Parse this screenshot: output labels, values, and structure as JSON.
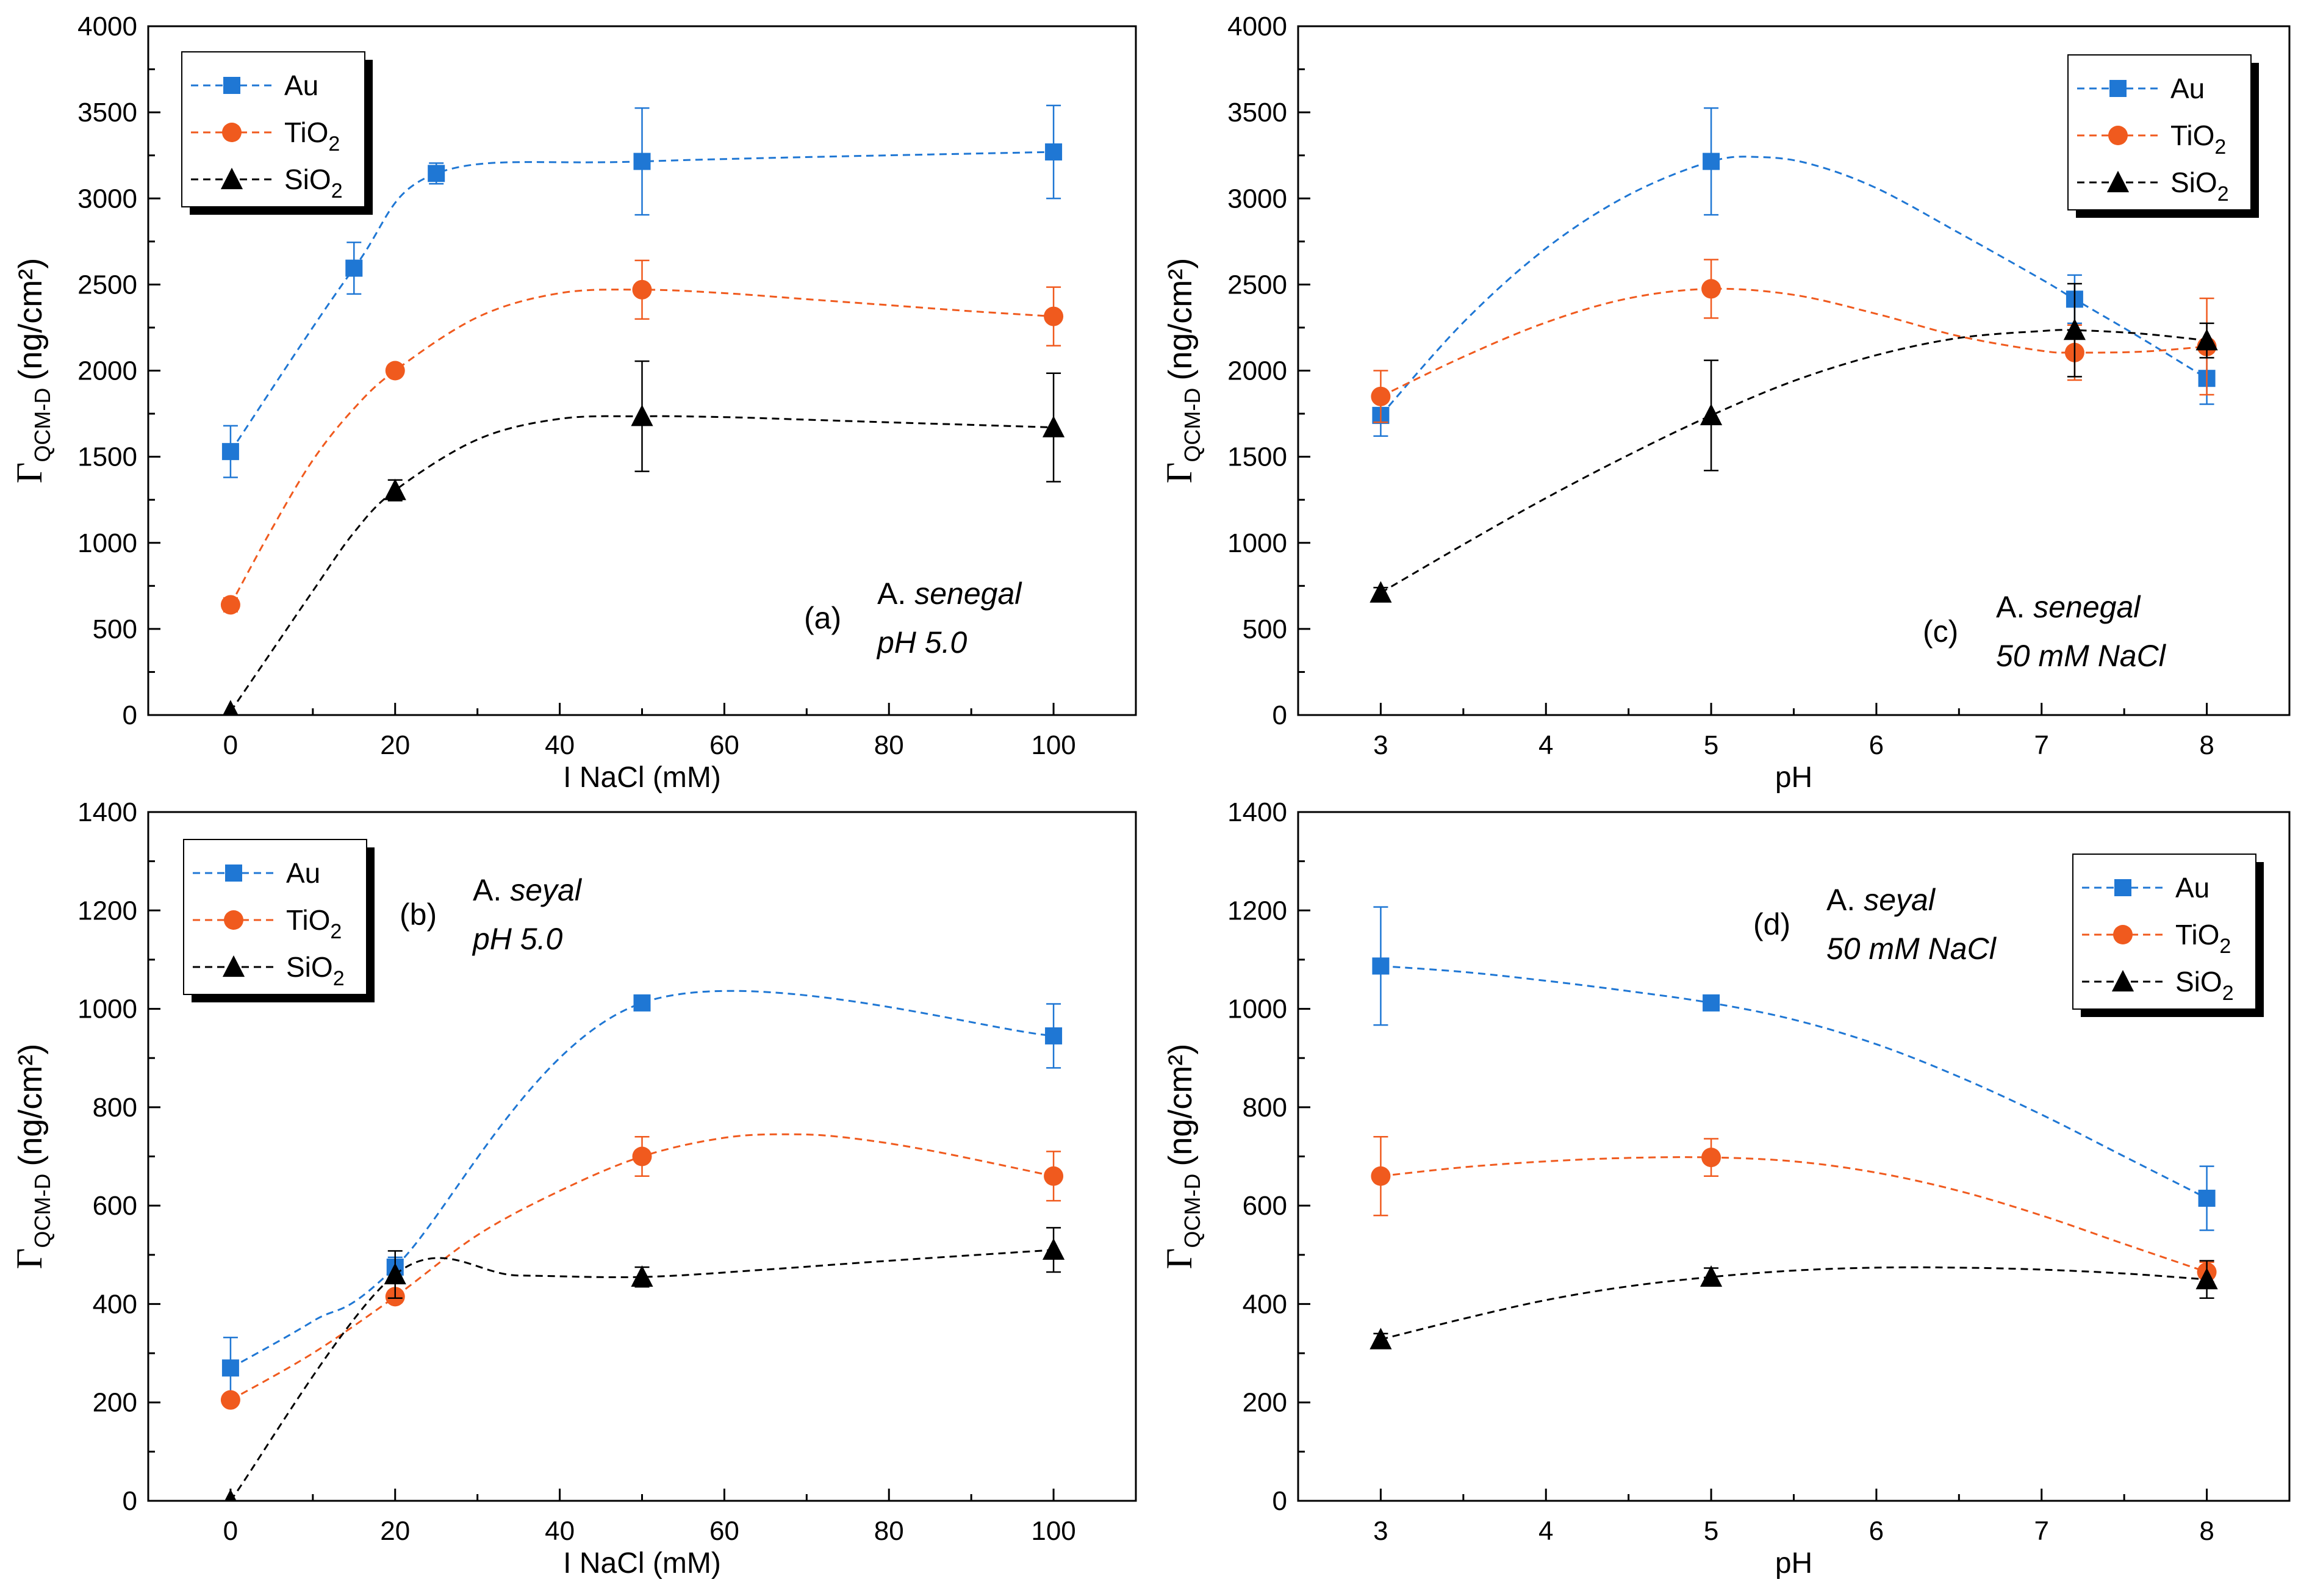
{
  "chart_data": [
    {
      "id": "a",
      "type": "line",
      "xlabel": "I NaCl (mM)",
      "ylabel": "Γ",
      "ylabel_sub": "QCM-D",
      "ylabel_units": "(ng/cm²)",
      "xlim": [
        -10,
        110
      ],
      "ylim": [
        0,
        4000
      ],
      "xticks": [
        0,
        20,
        40,
        60,
        80,
        100
      ],
      "yticks": [
        0,
        500,
        1000,
        1500,
        2000,
        2500,
        3000,
        3500,
        4000
      ],
      "annotation": {
        "label": "(a)",
        "species_prefix": "A.",
        "species": "senegal",
        "condition": "pH 5.0"
      },
      "legend": {
        "position": "top-left",
        "entries": [
          {
            "name": "Au",
            "sub": ""
          },
          {
            "name": "TiO",
            "sub": "2"
          },
          {
            "name": "SiO",
            "sub": "2"
          }
        ]
      },
      "series": [
        {
          "name": "Au",
          "marker": "square",
          "color": "#1f77d4",
          "x": [
            0,
            15,
            25,
            50,
            100
          ],
          "y": [
            1530,
            2595,
            3145,
            3215,
            3270
          ],
          "err": [
            150,
            150,
            60,
            310,
            270
          ],
          "curve": [
            [
              0,
              1530
            ],
            [
              15,
              2595
            ],
            [
              25,
              3145
            ],
            [
              50,
              3215
            ],
            [
              100,
              3270
            ]
          ]
        },
        {
          "name": "TiO2",
          "marker": "circle",
          "color": "#f05a1e",
          "x": [
            0,
            20,
            50,
            100
          ],
          "y": [
            640,
            2000,
            2470,
            2315
          ],
          "err": [
            40,
            30,
            170,
            170
          ],
          "curve": [
            [
              0,
              640
            ],
            [
              5,
              1080
            ],
            [
              10,
              1480
            ],
            [
              15,
              1780
            ],
            [
              20,
              2000
            ],
            [
              30,
              2310
            ],
            [
              40,
              2450
            ],
            [
              50,
              2470
            ],
            [
              60,
              2450
            ],
            [
              70,
              2415
            ],
            [
              80,
              2380
            ],
            [
              90,
              2345
            ],
            [
              100,
              2315
            ]
          ]
        },
        {
          "name": "SiO2",
          "marker": "triangle",
          "color": "#000000",
          "x": [
            0,
            20,
            50,
            100
          ],
          "y": [
            20,
            1305,
            1735,
            1670
          ],
          "err": [
            0,
            60,
            320,
            315
          ],
          "curve": [
            [
              0,
              20
            ],
            [
              5,
              370
            ],
            [
              10,
              720
            ],
            [
              15,
              1060
            ],
            [
              20,
              1305
            ],
            [
              30,
              1600
            ],
            [
              40,
              1720
            ],
            [
              50,
              1735
            ],
            [
              60,
              1730
            ],
            [
              70,
              1715
            ],
            [
              80,
              1700
            ],
            [
              90,
              1685
            ],
            [
              100,
              1670
            ]
          ]
        }
      ]
    },
    {
      "id": "c",
      "type": "line",
      "xlabel": "pH",
      "ylabel": "Γ",
      "ylabel_sub": "QCM-D",
      "ylabel_units": "(ng/cm²)",
      "xlim": [
        2.5,
        8.5
      ],
      "ylim": [
        0,
        4000
      ],
      "xticks": [
        3,
        4,
        5,
        6,
        7,
        8
      ],
      "yticks": [
        0,
        500,
        1000,
        1500,
        2000,
        2500,
        3000,
        3500,
        4000
      ],
      "annotation": {
        "label": "(c)",
        "species_prefix": "A.",
        "species": "senegal",
        "condition": "50 mM NaCl"
      },
      "legend": {
        "position": "top-right",
        "entries": [
          {
            "name": "Au",
            "sub": ""
          },
          {
            "name": "TiO",
            "sub": "2"
          },
          {
            "name": "SiO",
            "sub": "2"
          }
        ]
      },
      "series": [
        {
          "name": "Au",
          "marker": "square",
          "color": "#1f77d4",
          "x": [
            3,
            5,
            7.2,
            8
          ],
          "y": [
            1740,
            3215,
            2415,
            1955
          ],
          "err": [
            120,
            310,
            140,
            150
          ],
          "curve": [
            [
              3,
              1740
            ],
            [
              3.5,
              2280
            ],
            [
              4,
              2710
            ],
            [
              4.5,
              3020
            ],
            [
              5,
              3215
            ],
            [
              5.3,
              3240
            ],
            [
              5.6,
              3200
            ],
            [
              6,
              3060
            ],
            [
              6.5,
              2800
            ],
            [
              7,
              2530
            ],
            [
              7.2,
              2415
            ],
            [
              7.6,
              2190
            ],
            [
              8,
              1955
            ]
          ]
        },
        {
          "name": "TiO2",
          "marker": "circle",
          "color": "#f05a1e",
          "x": [
            3,
            5,
            7.2,
            8
          ],
          "y": [
            1850,
            2475,
            2105,
            2140
          ],
          "err": [
            150,
            170,
            160,
            280
          ],
          "curve": [
            [
              3,
              1850
            ],
            [
              3.5,
              2080
            ],
            [
              4,
              2280
            ],
            [
              4.5,
              2420
            ],
            [
              5,
              2475
            ],
            [
              5.5,
              2440
            ],
            [
              6,
              2330
            ],
            [
              6.5,
              2200
            ],
            [
              7,
              2115
            ],
            [
              7.2,
              2105
            ],
            [
              7.6,
              2110
            ],
            [
              8,
              2140
            ]
          ]
        },
        {
          "name": "SiO2",
          "marker": "triangle",
          "color": "#000000",
          "x": [
            3,
            5,
            7.2,
            8
          ],
          "y": [
            710,
            1740,
            2235,
            2175
          ],
          "err": [
            30,
            320,
            270,
            100
          ],
          "curve": [
            [
              3,
              710
            ],
            [
              3.5,
              990
            ],
            [
              4,
              1260
            ],
            [
              4.5,
              1510
            ],
            [
              5,
              1740
            ],
            [
              5.5,
              1940
            ],
            [
              6,
              2090
            ],
            [
              6.5,
              2190
            ],
            [
              7,
              2230
            ],
            [
              7.2,
              2235
            ],
            [
              7.6,
              2215
            ],
            [
              8,
              2175
            ]
          ]
        }
      ]
    },
    {
      "id": "b",
      "type": "line",
      "xlabel": "I NaCl (mM)",
      "ylabel": "Γ",
      "ylabel_sub": "QCM-D",
      "ylabel_units": "(ng/cm²)",
      "xlim": [
        -10,
        110
      ],
      "ylim": [
        0,
        1400
      ],
      "xticks": [
        0,
        20,
        40,
        60,
        80,
        100
      ],
      "yticks": [
        0,
        200,
        400,
        600,
        800,
        1000,
        1200,
        1400
      ],
      "annotation": {
        "label": "(b)",
        "species_prefix": "A.",
        "species": "seyal",
        "condition": "pH 5.0"
      },
      "legend": {
        "position": "top-left",
        "entries": [
          {
            "name": "Au",
            "sub": ""
          },
          {
            "name": "TiO",
            "sub": "2"
          },
          {
            "name": "SiO",
            "sub": "2"
          }
        ]
      },
      "series": [
        {
          "name": "Au",
          "marker": "square",
          "color": "#1f77d4",
          "x": [
            0,
            20,
            50,
            100
          ],
          "y": [
            270,
            475,
            1012,
            945
          ],
          "err": [
            62,
            20,
            8,
            65
          ],
          "curve": [
            [
              0,
              270
            ],
            [
              10,
              365
            ],
            [
              20,
              475
            ],
            [
              50,
              1012
            ],
            [
              100,
              945
            ]
          ]
        },
        {
          "name": "TiO2",
          "marker": "circle",
          "color": "#f05a1e",
          "x": [
            0,
            20,
            50,
            100
          ],
          "y": [
            205,
            415,
            700,
            660
          ],
          "err": [
            8,
            12,
            40,
            50
          ],
          "curve": [
            [
              0,
              205
            ],
            [
              10,
              300
            ],
            [
              20,
              415
            ],
            [
              30,
              540
            ],
            [
              40,
              630
            ],
            [
              50,
              700
            ],
            [
              60,
              738
            ],
            [
              68,
              745
            ],
            [
              75,
              738
            ],
            [
              85,
              712
            ],
            [
              100,
              660
            ]
          ]
        },
        {
          "name": "SiO2",
          "marker": "triangle",
          "color": "#000000",
          "x": [
            0,
            20,
            50,
            100
          ],
          "y": [
            0,
            460,
            455,
            510
          ],
          "err": [
            0,
            48,
            20,
            45
          ],
          "curve": [
            [
              0,
              0
            ],
            [
              20,
              460
            ],
            [
              35,
              458
            ],
            [
              50,
              455
            ],
            [
              65,
              470
            ],
            [
              80,
              488
            ],
            [
              100,
              510
            ]
          ]
        }
      ]
    },
    {
      "id": "d",
      "type": "line",
      "xlabel": "pH",
      "ylabel": "Γ",
      "ylabel_sub": "QCM-D",
      "ylabel_units": "(ng/cm²)",
      "xlim": [
        2.5,
        8.5
      ],
      "ylim": [
        0,
        1400
      ],
      "xticks": [
        3,
        4,
        5,
        6,
        7,
        8
      ],
      "yticks": [
        0,
        200,
        400,
        600,
        800,
        1000,
        1200,
        1400
      ],
      "annotation": {
        "label": "(d)",
        "species_prefix": "A.",
        "species": "seyal",
        "condition": "50 mM NaCl"
      },
      "legend": {
        "position": "top-right",
        "entries": [
          {
            "name": "Au",
            "sub": ""
          },
          {
            "name": "TiO",
            "sub": "2"
          },
          {
            "name": "SiO",
            "sub": "2"
          }
        ]
      },
      "series": [
        {
          "name": "Au",
          "marker": "square",
          "color": "#1f77d4",
          "x": [
            3,
            5,
            8
          ],
          "y": [
            1087,
            1012,
            615
          ],
          "err": [
            120,
            8,
            65
          ],
          "curve": [
            [
              3,
              1087
            ],
            [
              3.5,
              1075
            ],
            [
              4,
              1057
            ],
            [
              4.5,
              1036
            ],
            [
              5,
              1012
            ],
            [
              5.5,
              978
            ],
            [
              6,
              928
            ],
            [
              6.5,
              862
            ],
            [
              7,
              785
            ],
            [
              7.5,
              700
            ],
            [
              8,
              615
            ]
          ]
        },
        {
          "name": "TiO2",
          "marker": "circle",
          "color": "#f05a1e",
          "x": [
            3,
            5,
            8
          ],
          "y": [
            660,
            698,
            465
          ],
          "err": [
            80,
            38,
            20
          ],
          "curve": [
            [
              3,
              660
            ],
            [
              3.5,
              678
            ],
            [
              4,
              690
            ],
            [
              4.5,
              697
            ],
            [
              5,
              698
            ],
            [
              5.5,
              690
            ],
            [
              6,
              667
            ],
            [
              6.5,
              630
            ],
            [
              7,
              580
            ],
            [
              7.5,
              522
            ],
            [
              8,
              465
            ]
          ]
        },
        {
          "name": "SiO2",
          "marker": "triangle",
          "color": "#000000",
          "x": [
            3,
            5,
            8
          ],
          "y": [
            328,
            455,
            450
          ],
          "err": [
            12,
            18,
            38
          ],
          "curve": [
            [
              3,
              328
            ],
            [
              3.5,
              370
            ],
            [
              4,
              408
            ],
            [
              4.5,
              436
            ],
            [
              5,
              455
            ],
            [
              5.5,
              468
            ],
            [
              6,
              474
            ],
            [
              6.5,
              474
            ],
            [
              7,
              470
            ],
            [
              7.5,
              462
            ],
            [
              8,
              450
            ]
          ]
        }
      ]
    }
  ]
}
